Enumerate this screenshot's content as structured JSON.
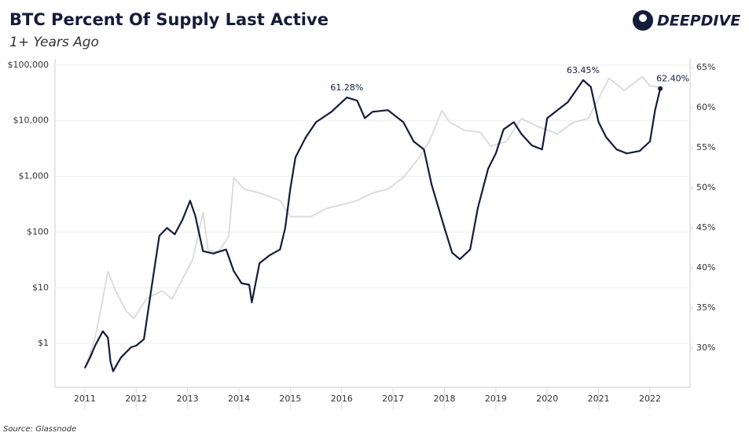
{
  "header": {
    "logo": "DEEPDIVE"
  },
  "chart_data": {
    "type": "line",
    "title": "BTC Percent Of Supply Last Active",
    "subtitle": "1+ Years Ago",
    "source": "Source: Glassnode",
    "xlim": [
      2010.42,
      2022.78
    ],
    "xticks": [
      2011,
      2012,
      2013,
      2014,
      2015,
      2016,
      2017,
      2018,
      2019,
      2020,
      2021,
      2022
    ],
    "ylog": true,
    "ylim": [
      0.163,
      129000
    ],
    "yticks": [
      {
        "value": 1,
        "label": "$1"
      },
      {
        "value": 10,
        "label": "$10"
      },
      {
        "value": 100,
        "label": "$100"
      },
      {
        "value": 1000,
        "label": "$1,000"
      },
      {
        "value": 10000,
        "label": "$10,000"
      },
      {
        "value": 100000,
        "label": "$100,000"
      }
    ],
    "y2lim": [
      25.1,
      66.1
    ],
    "y2ticks": [
      {
        "value": 30,
        "label": "30%"
      },
      {
        "value": 35,
        "label": "35%"
      },
      {
        "value": 40,
        "label": "40%"
      },
      {
        "value": 45,
        "label": "45%"
      },
      {
        "value": 50,
        "label": "50%"
      },
      {
        "value": 55,
        "label": "55%"
      },
      {
        "value": 60,
        "label": "60%"
      },
      {
        "value": 65,
        "label": "65%"
      }
    ],
    "grid": true,
    "series": [
      {
        "color": "#d9d9d9",
        "axis": "y",
        "x": [
          2011.0,
          2011.2,
          2011.35,
          2011.45,
          2011.6,
          2011.8,
          2011.95,
          2012.2,
          2012.5,
          2012.7,
          2012.9,
          2013.1,
          2013.3,
          2013.4,
          2013.6,
          2013.8,
          2013.9,
          2014.1,
          2014.4,
          2014.6,
          2014.8,
          2015.0,
          2015.4,
          2015.7,
          2016.0,
          2016.3,
          2016.6,
          2016.9,
          2017.2,
          2017.45,
          2017.7,
          2017.95,
          2018.1,
          2018.4,
          2018.7,
          2018.9,
          2019.2,
          2019.5,
          2019.8,
          2020.2,
          2020.5,
          2020.8,
          2021.0,
          2021.2,
          2021.5,
          2021.85,
          2022.0,
          2022.2
        ],
        "values": [
          0.34,
          1.25,
          6.3,
          19.8,
          8.8,
          3.9,
          2.8,
          6.3,
          8.8,
          6.3,
          14.3,
          32,
          226,
          47,
          44,
          85,
          960,
          590,
          505,
          430,
          370,
          190,
          190,
          265,
          310,
          370,
          505,
          590,
          960,
          1850,
          4170,
          15200,
          9400,
          6700,
          6200,
          3500,
          4200,
          11000,
          8000,
          5800,
          9300,
          11000,
          25000,
          58000,
          35000,
          62000,
          42000,
          40000
        ]
      },
      {
        "color": "#141c3a",
        "axis": "y2",
        "x": [
          2011.0,
          2011.1,
          2011.2,
          2011.35,
          2011.45,
          2011.5,
          2011.55,
          2011.7,
          2011.9,
          2012.0,
          2012.15,
          2012.3,
          2012.45,
          2012.6,
          2012.75,
          2012.9,
          2013.05,
          2013.15,
          2013.3,
          2013.5,
          2013.75,
          2013.9,
          2014.05,
          2014.2,
          2014.25,
          2014.4,
          2014.6,
          2014.8,
          2014.9,
          2015.0,
          2015.1,
          2015.3,
          2015.5,
          2015.8,
          2016.0,
          2016.1,
          2016.3,
          2016.45,
          2016.6,
          2016.9,
          2017.2,
          2017.4,
          2017.6,
          2017.75,
          2018.0,
          2018.15,
          2018.3,
          2018.5,
          2018.65,
          2018.85,
          2019.0,
          2019.15,
          2019.35,
          2019.5,
          2019.7,
          2019.9,
          2020.0,
          2020.2,
          2020.4,
          2020.7,
          2020.85,
          2021.0,
          2021.15,
          2021.35,
          2021.55,
          2021.8,
          2022.0,
          2022.1,
          2022.2
        ],
        "values": [
          27.5,
          28.8,
          30.3,
          32.1,
          31.3,
          28.3,
          27.1,
          28.8,
          30.1,
          30.3,
          31.1,
          37.6,
          44.0,
          45.0,
          44.2,
          46.0,
          48.4,
          46.5,
          42.1,
          41.8,
          42.3,
          39.6,
          38.1,
          37.9,
          35.7,
          40.6,
          41.6,
          42.3,
          45.0,
          49.9,
          53.8,
          56.3,
          58.2,
          59.5,
          60.7,
          61.28,
          60.9,
          58.7,
          59.5,
          59.7,
          58.2,
          55.8,
          54.8,
          50.4,
          45.0,
          41.9,
          41.1,
          42.3,
          47.5,
          52.4,
          54.3,
          57.3,
          58.2,
          56.7,
          55.3,
          54.8,
          58.7,
          59.7,
          60.7,
          63.45,
          62.6,
          58.2,
          56.3,
          54.8,
          54.3,
          54.6,
          55.8,
          59.7,
          62.4
        ],
        "value_labels": [
          null,
          null,
          null,
          null,
          null,
          null,
          null,
          null,
          null,
          null,
          null,
          null,
          null,
          null,
          null,
          null,
          null,
          null,
          null,
          null,
          null,
          null,
          null,
          null,
          null,
          null,
          null,
          null,
          null,
          null,
          null,
          null,
          null,
          null,
          null,
          "61.28%",
          null,
          null,
          null,
          null,
          null,
          null,
          null,
          null,
          null,
          null,
          null,
          null,
          null,
          null,
          null,
          null,
          null,
          null,
          null,
          null,
          null,
          null,
          null,
          "63.45%",
          null,
          null,
          null,
          null,
          null,
          null,
          null,
          null,
          "62.40%"
        ]
      }
    ]
  }
}
